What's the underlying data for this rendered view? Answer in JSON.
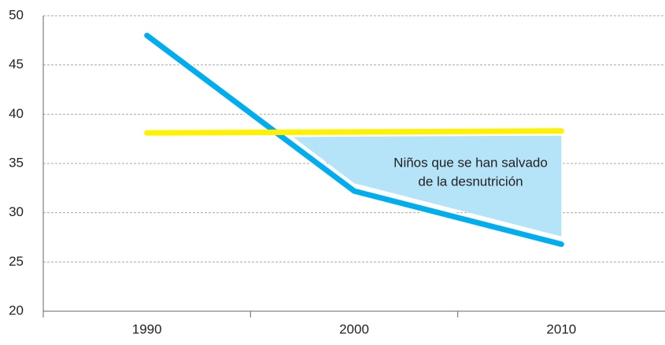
{
  "chart_data": {
    "type": "line",
    "x": [
      1990,
      2000,
      2010
    ],
    "series": [
      {
        "color": "#00aeef",
        "values": [
          48,
          32.2,
          26.8
        ]
      },
      {
        "color": "#fff200",
        "values": [
          38.1,
          38.2,
          38.3
        ]
      }
    ],
    "xlim": [
      1985,
      2015
    ],
    "xticks": [
      1990,
      2000,
      2010
    ],
    "xticks_minor": [
      1985,
      1995,
      2005
    ],
    "ylim": [
      20,
      50
    ],
    "yticks": [
      20,
      25,
      30,
      35,
      40,
      45,
      50
    ],
    "grid": true,
    "area_color": "#b5e4f8",
    "annotation": [
      "Niños que se han salvado",
      "de la desnutrición"
    ]
  }
}
